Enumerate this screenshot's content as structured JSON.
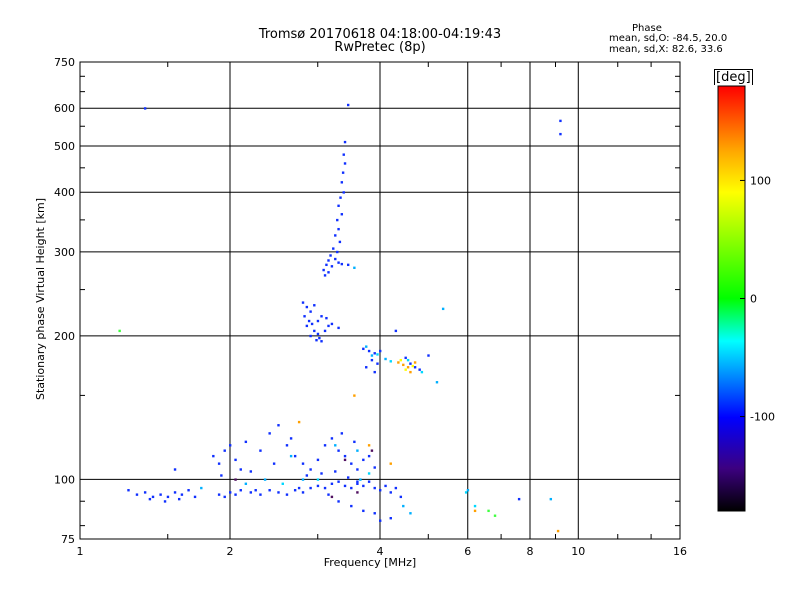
{
  "title": [
    "Tromsø 20170618 04:18:00-04:19:43",
    "RwPretec (8p)"
  ],
  "phase_panel": {
    "title": "Phase",
    "stat1": "mean, sd,O: -84.5, 20.0",
    "stat2": "mean, sd,X:  82.6, 33.6"
  },
  "colorbar": {
    "unit": "[deg]",
    "ticks": [
      "100",
      "0",
      "-100"
    ],
    "colors": [
      "#ff0000",
      "#ffa500",
      "#ffff00",
      "#00ff00",
      "#00ffff",
      "#0000ff",
      "#3c0080",
      "#000000"
    ]
  },
  "chart_data": {
    "type": "scatter",
    "xlabel": "Frequency [MHz]",
    "ylabel": "Stationary phase Virtual Height [km]",
    "xscale": "log",
    "yscale": "log",
    "xlim": [
      1,
      16
    ],
    "ylim": [
      75,
      750
    ],
    "xticks": [
      "1",
      "2",
      "4",
      "6",
      "8",
      "10",
      "16"
    ],
    "xtick_values": [
      1,
      2,
      4,
      6,
      8,
      10,
      16
    ],
    "yticks": [
      "75",
      "100",
      "200",
      "300",
      "400",
      "500",
      "600",
      "750"
    ],
    "ytick_values": [
      75,
      100,
      200,
      300,
      400,
      500,
      600,
      750
    ],
    "xgrid": [
      2,
      4,
      6,
      8,
      10
    ],
    "ygrid": [
      100,
      200,
      300,
      400,
      500,
      600
    ],
    "series": [
      {
        "color": "#1030ff",
        "points": [
          [
            1.35,
            600
          ],
          [
            3.45,
            610
          ],
          [
            3.4,
            510
          ],
          [
            3.38,
            480
          ],
          [
            3.4,
            460
          ],
          [
            3.37,
            440
          ],
          [
            3.35,
            420
          ],
          [
            3.38,
            400
          ],
          [
            3.33,
            390
          ],
          [
            3.3,
            375
          ],
          [
            3.35,
            360
          ],
          [
            3.28,
            350
          ],
          [
            3.3,
            335
          ],
          [
            3.25,
            325
          ],
          [
            3.32,
            315
          ],
          [
            3.22,
            305
          ],
          [
            3.28,
            300
          ],
          [
            3.18,
            295
          ],
          [
            3.25,
            290
          ],
          [
            3.15,
            288
          ],
          [
            3.3,
            285
          ],
          [
            3.12,
            282
          ],
          [
            3.2,
            280
          ],
          [
            3.35,
            283
          ],
          [
            3.45,
            282
          ],
          [
            3.08,
            275
          ],
          [
            3.15,
            272
          ],
          [
            3.1,
            268
          ],
          [
            9.2,
            565
          ],
          [
            9.2,
            530
          ],
          [
            2.8,
            235
          ],
          [
            2.85,
            230
          ],
          [
            2.95,
            232
          ],
          [
            2.9,
            225
          ],
          [
            2.82,
            220
          ],
          [
            2.88,
            215
          ],
          [
            2.92,
            212
          ],
          [
            2.85,
            210
          ],
          [
            3.0,
            215
          ],
          [
            3.05,
            220
          ],
          [
            2.95,
            205
          ],
          [
            3.0,
            202
          ],
          [
            2.9,
            200
          ],
          [
            3.02,
            198
          ],
          [
            3.1,
            205
          ],
          [
            3.15,
            210
          ],
          [
            3.12,
            218
          ],
          [
            3.2,
            212
          ],
          [
            3.3,
            208
          ],
          [
            2.98,
            196
          ],
          [
            3.05,
            195
          ],
          [
            3.7,
            188
          ],
          [
            3.8,
            186
          ],
          [
            3.9,
            184
          ],
          [
            4.0,
            186
          ],
          [
            3.85,
            178
          ],
          [
            3.95,
            175
          ],
          [
            3.75,
            172
          ],
          [
            3.9,
            168
          ],
          [
            4.3,
            205
          ],
          [
            4.5,
            180
          ],
          [
            4.7,
            172
          ],
          [
            4.8,
            170
          ],
          [
            5.0,
            182
          ],
          [
            4.6,
            175
          ],
          [
            1.85,
            112
          ],
          [
            1.9,
            108
          ],
          [
            1.95,
            115
          ],
          [
            2.0,
            118
          ],
          [
            2.05,
            110
          ],
          [
            2.1,
            105
          ],
          [
            1.92,
            102
          ],
          [
            2.15,
            120
          ],
          [
            2.3,
            115
          ],
          [
            2.4,
            125
          ],
          [
            2.5,
            130
          ],
          [
            2.6,
            118
          ],
          [
            2.7,
            112
          ],
          [
            2.8,
            108
          ],
          [
            2.9,
            105
          ],
          [
            3.0,
            110
          ],
          [
            3.1,
            118
          ],
          [
            3.2,
            122
          ],
          [
            3.3,
            115
          ],
          [
            3.4,
            112
          ],
          [
            3.5,
            108
          ],
          [
            3.6,
            105
          ],
          [
            3.7,
            110
          ],
          [
            3.8,
            112
          ],
          [
            3.9,
            106
          ],
          [
            3.55,
            120
          ],
          [
            3.35,
            125
          ],
          [
            2.65,
            122
          ],
          [
            2.45,
            108
          ],
          [
            2.2,
            104
          ],
          [
            2.85,
            102
          ],
          [
            3.05,
            103
          ],
          [
            3.25,
            104
          ],
          [
            3.45,
            101
          ],
          [
            3.6,
            99
          ],
          [
            1.25,
            95
          ],
          [
            1.3,
            93
          ],
          [
            1.35,
            94
          ],
          [
            1.4,
            92
          ],
          [
            1.45,
            93
          ],
          [
            1.5,
            92
          ],
          [
            1.55,
            94
          ],
          [
            1.6,
            93
          ],
          [
            1.65,
            95
          ],
          [
            1.7,
            92
          ],
          [
            1.38,
            91
          ],
          [
            1.48,
            90
          ],
          [
            1.58,
            91
          ],
          [
            1.9,
            93
          ],
          [
            1.95,
            92
          ],
          [
            2.0,
            94
          ],
          [
            2.05,
            93
          ],
          [
            2.1,
            95
          ],
          [
            2.2,
            94
          ],
          [
            2.3,
            93
          ],
          [
            2.4,
            95
          ],
          [
            2.5,
            94
          ],
          [
            2.6,
            93
          ],
          [
            2.7,
            95
          ],
          [
            2.8,
            94
          ],
          [
            2.9,
            96
          ],
          [
            3.0,
            97
          ],
          [
            3.1,
            96
          ],
          [
            3.2,
            98
          ],
          [
            3.3,
            99
          ],
          [
            3.4,
            97
          ],
          [
            3.5,
            96
          ],
          [
            3.6,
            98
          ],
          [
            3.7,
            97
          ],
          [
            3.8,
            99
          ],
          [
            3.9,
            96
          ],
          [
            4.0,
            95
          ],
          [
            4.1,
            97
          ],
          [
            4.2,
            94
          ],
          [
            4.3,
            96
          ],
          [
            4.4,
            92
          ],
          [
            3.3,
            90
          ],
          [
            3.5,
            88
          ],
          [
            3.7,
            86
          ],
          [
            3.9,
            85
          ],
          [
            4.0,
            82
          ],
          [
            4.2,
            83
          ],
          [
            7.6,
            91
          ],
          [
            1.55,
            105
          ],
          [
            2.25,
            95
          ],
          [
            2.75,
            96
          ],
          [
            3.15,
            93
          ]
        ]
      },
      {
        "color": "#00b0ff",
        "points": [
          [
            3.55,
            278
          ],
          [
            5.35,
            228
          ],
          [
            3.75,
            190
          ],
          [
            3.85,
            182
          ],
          [
            4.1,
            179
          ],
          [
            1.75,
            96
          ],
          [
            2.15,
            98
          ],
          [
            2.65,
            112
          ],
          [
            3.25,
            118
          ],
          [
            3.6,
            115
          ],
          [
            4.45,
            88
          ],
          [
            4.6,
            85
          ],
          [
            6.0,
            95
          ],
          [
            8.8,
            91
          ],
          [
            5.2,
            160
          ],
          [
            2.35,
            100
          ],
          [
            3.65,
            100
          ],
          [
            2.8,
            100
          ]
        ]
      },
      {
        "color": "#00d8ff",
        "points": [
          [
            3.95,
            183
          ],
          [
            4.2,
            177
          ],
          [
            4.55,
            178
          ],
          [
            4.85,
            168
          ],
          [
            2.55,
            98
          ],
          [
            3.0,
            100
          ],
          [
            3.8,
            103
          ],
          [
            5.95,
            94
          ],
          [
            6.2,
            88
          ]
        ]
      },
      {
        "color": "#ffa000",
        "points": [
          [
            4.35,
            176
          ],
          [
            4.45,
            174
          ],
          [
            4.55,
            172
          ],
          [
            4.6,
            168
          ],
          [
            4.7,
            176
          ],
          [
            3.55,
            150
          ],
          [
            2.75,
            132
          ],
          [
            3.8,
            118
          ],
          [
            4.2,
            108
          ],
          [
            6.2,
            86
          ],
          [
            9.1,
            78
          ]
        ]
      },
      {
        "color": "#ffff00",
        "points": [
          [
            4.4,
            178
          ],
          [
            4.5,
            170
          ],
          [
            4.65,
            173
          ]
        ]
      },
      {
        "color": "#40ff40",
        "points": [
          [
            1.2,
            205
          ],
          [
            6.6,
            86
          ],
          [
            6.8,
            84
          ]
        ]
      },
      {
        "color": "#501060",
        "points": [
          [
            3.2,
            92
          ],
          [
            3.6,
            94
          ],
          [
            3.85,
            115
          ],
          [
            2.05,
            100
          ],
          [
            3.4,
            110
          ]
        ]
      }
    ]
  }
}
